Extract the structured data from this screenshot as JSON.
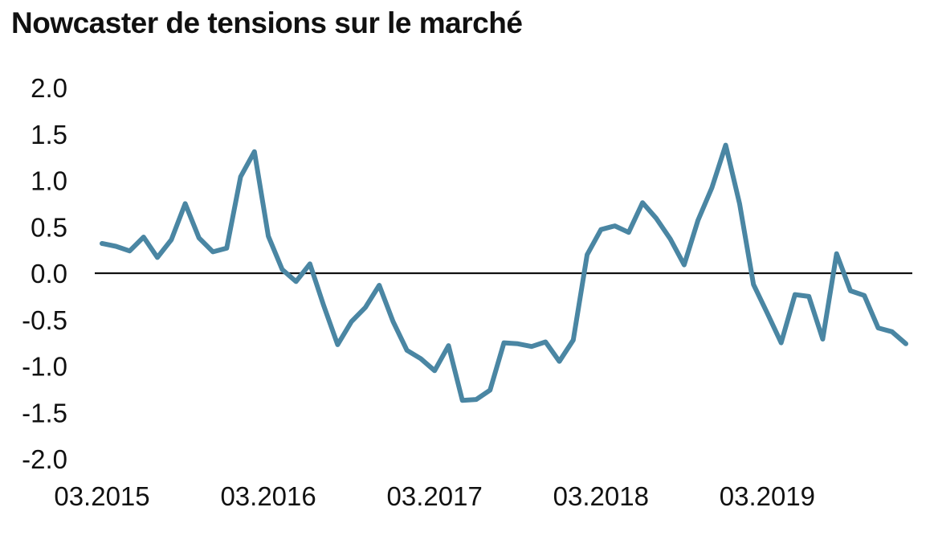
{
  "title": "Nowcaster de tensions sur le marché",
  "chart_data": {
    "type": "line",
    "title": "Nowcaster de tensions sur le marché",
    "xlabel": "",
    "ylabel": "",
    "ylim": [
      -2.0,
      2.0
    ],
    "yticks": [
      "2.0",
      "1.5",
      "1.0",
      "0.5",
      "0.0",
      "-0.5",
      "-1.0",
      "-1.5",
      "-2.0"
    ],
    "ytick_values": [
      2.0,
      1.5,
      1.0,
      0.5,
      0.0,
      -0.5,
      -1.0,
      -1.5,
      -2.0
    ],
    "xticks": [
      "03.2015",
      "03.2016",
      "03.2017",
      "03.2018",
      "03.2019"
    ],
    "xtick_index": [
      0,
      12,
      24,
      36,
      48
    ],
    "x_start": "2015-03",
    "grid": false,
    "zero_line": true,
    "line_color": "#4a86a3",
    "series": [
      {
        "values": [
          0.32,
          0.29,
          0.24,
          0.39,
          0.17,
          0.36,
          0.75,
          0.38,
          0.23,
          0.27,
          1.04,
          1.31,
          0.4,
          0.04,
          -0.09,
          0.1,
          -0.35,
          -0.77,
          -0.52,
          -0.37,
          -0.13,
          -0.52,
          -0.83,
          -0.92,
          -1.05,
          -0.78,
          -1.37,
          -1.36,
          -1.26,
          -0.75,
          -0.76,
          -0.79,
          -0.74,
          -0.95,
          -0.72,
          0.2,
          0.47,
          0.51,
          0.44,
          0.76,
          0.59,
          0.37,
          0.09,
          0.57,
          0.92,
          1.38,
          0.75,
          -0.12,
          -0.43,
          -0.75,
          -0.23,
          -0.25,
          -0.71,
          0.21,
          -0.19,
          -0.24,
          -0.59,
          -0.63,
          -0.76
        ]
      }
    ]
  }
}
